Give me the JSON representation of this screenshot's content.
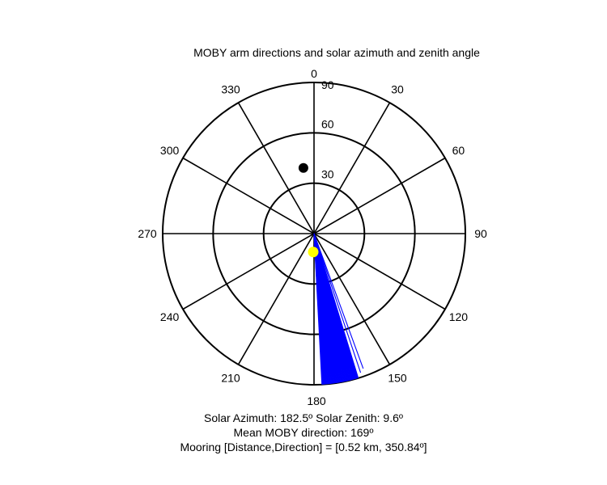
{
  "chart_data": {
    "type": "polar",
    "title": "MOBY arm directions and solar azimuth and zenith angle",
    "angle_ticks": [
      "0",
      "30",
      "60",
      "90",
      "120",
      "150",
      "180",
      "210",
      "240",
      "270",
      "300",
      "330"
    ],
    "radial_ticks": [
      "30",
      "60",
      "90"
    ],
    "rmax": 90,
    "arm_directions_range_deg": [
      163,
      177
    ],
    "arm_color": "#0000ff",
    "solar_point": {
      "azimuth": 182.5,
      "zenith": 9.6,
      "color": "#ffff00"
    },
    "mooring_point": {
      "direction": 350.84,
      "color": "#000000"
    },
    "captions": {
      "line1": "Solar Azimuth: 182.5º   Solar Zenith: 9.6º",
      "line2": "Mean MOBY direction: 169º",
      "line3": "Mooring [Distance,Direction] = [0.52 km, 350.84º]"
    }
  }
}
